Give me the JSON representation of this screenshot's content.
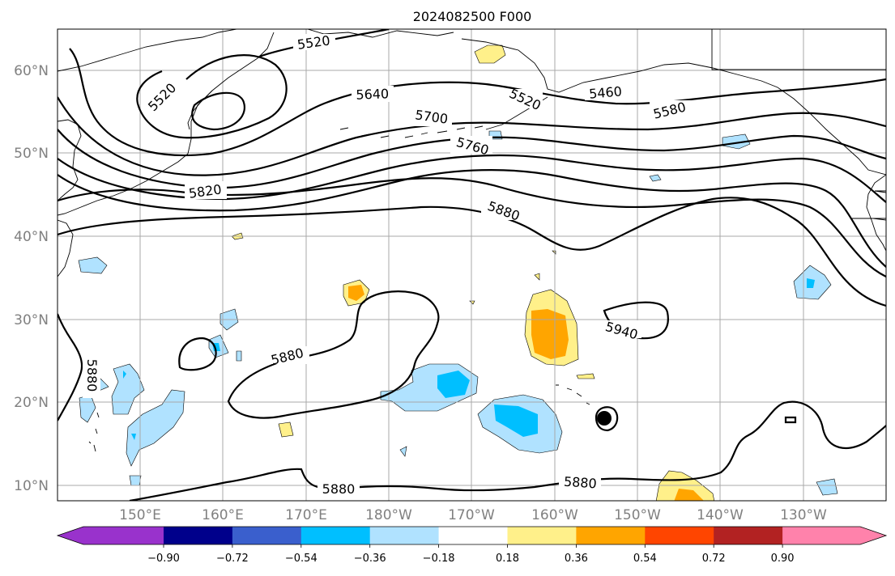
{
  "title": "2024082500 F000",
  "lat_labels": [
    "10°N",
    "20°N",
    "30°N",
    "40°N",
    "50°N",
    "60°N"
  ],
  "lon_labels": [
    "150°E",
    "160°E",
    "170°E",
    "180°W",
    "170°W",
    "160°W",
    "150°W",
    "140°W",
    "130°W"
  ],
  "contour_labels": [
    "5520",
    "5520",
    "5520",
    "5460",
    "5580",
    "5640",
    "5700",
    "5760",
    "5820",
    "5880",
    "5880",
    "5880",
    "5880",
    "5880",
    "5940"
  ],
  "colorbar": {
    "ticks": [
      "−0.90",
      "−0.72",
      "−0.54",
      "−0.36",
      "−0.18",
      "0.18",
      "0.36",
      "0.54",
      "0.72",
      "0.90"
    ],
    "colors": {
      "under": "#9932cc",
      "levels": [
        "#00008b",
        "#3a5fcd",
        "#00bfff",
        "#b0e2ff",
        "#ffffff",
        "#fff08a",
        "#ffa500",
        "#ff4500",
        "#b22222"
      ],
      "over": "#ff82ab"
    }
  },
  "colors": {
    "light_blue": "#b0e2ff",
    "sky_blue": "#00bfff",
    "light_yellow": "#fff08a",
    "orange": "#ffa500",
    "gridline": "#a8a8a8",
    "axis_label": "#808080"
  },
  "markers": {
    "storm_symbol": "filled-circle"
  }
}
